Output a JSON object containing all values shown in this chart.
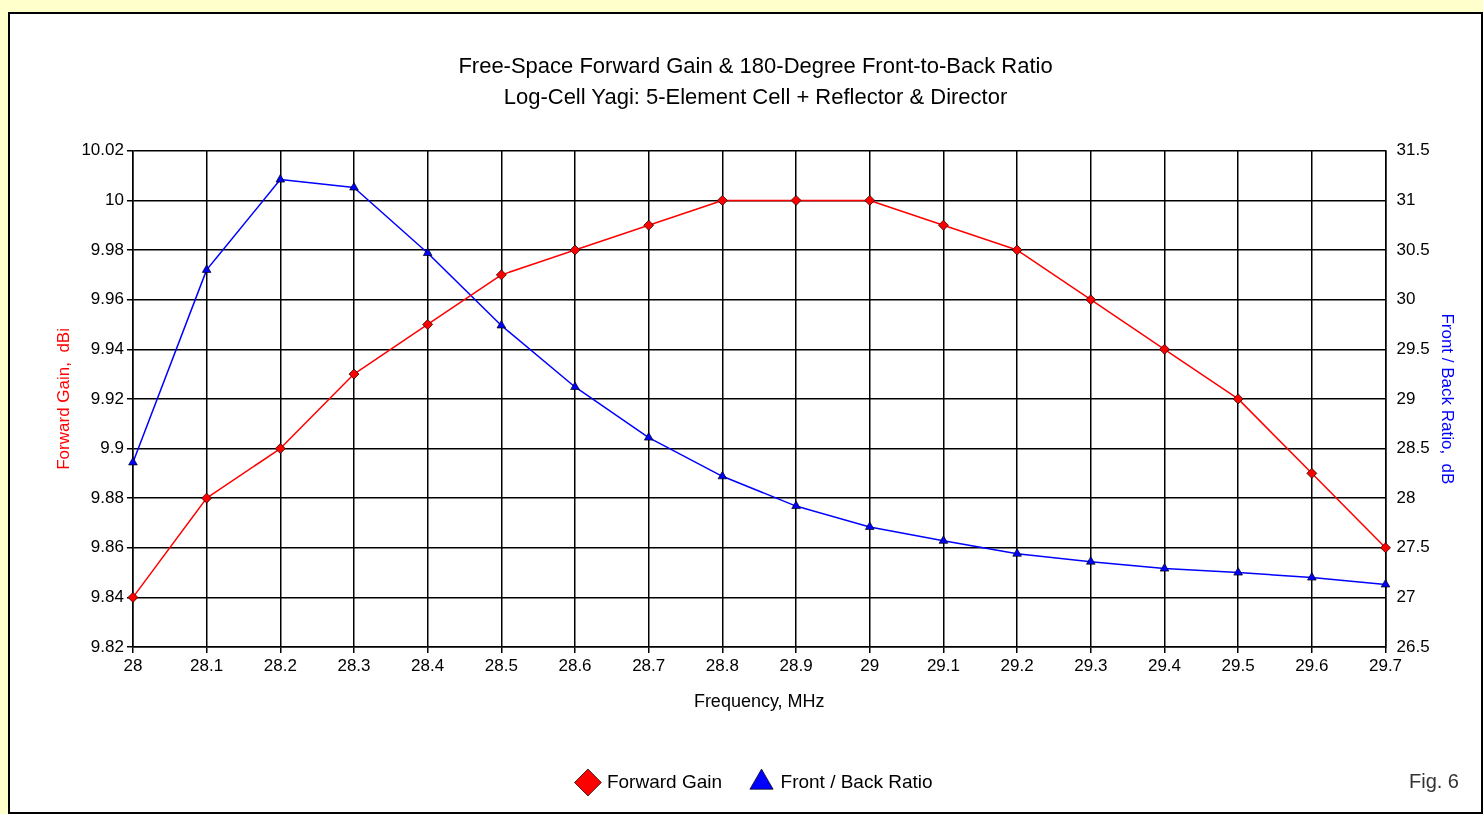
{
  "chart_data": {
    "type": "line",
    "title": "Free-Space Forward Gain & 180-Degree Front-to-Back Ratio",
    "subtitle": "Log-Cell Yagi: 5-Element Cell + Reflector & Director",
    "xlabel": "Frequency, MHz",
    "ylabel": "Forward Gain,  dBi",
    "y2label": "Front / Back Ratio,  dB",
    "categories": [
      "28",
      "28.1",
      "28.2",
      "28.3",
      "28.4",
      "28.5",
      "28.6",
      "28.7",
      "28.8",
      "28.9",
      "29",
      "29.1",
      "29.2",
      "29.3",
      "29.4",
      "29.5",
      "29.6",
      "29.7"
    ],
    "series": [
      {
        "name": "Forward Gain",
        "color": "#ff0000",
        "marker": "diamond",
        "values": [
          9.84,
          9.88,
          9.9,
          9.93,
          9.95,
          9.97,
          9.98,
          9.99,
          10,
          10,
          10,
          9.99,
          9.98,
          9.96,
          9.94,
          9.92,
          9.89,
          9.86
        ]
      },
      {
        "name": "Front / Back Ratio",
        "color": "#0000ff",
        "marker": "triangle",
        "axis": "y2",
        "values": [
          28.36,
          30.3,
          31.21,
          31.13,
          30.47,
          29.74,
          29.12,
          28.61,
          28.22,
          27.92,
          27.71,
          27.57,
          27.44,
          27.36,
          27.29,
          27.25,
          27.2,
          27.13
        ]
      }
    ],
    "ylim": [
      9.82,
      10.02
    ],
    "yticks": [
      9.82,
      9.84,
      9.86,
      9.88,
      9.9,
      9.92,
      9.94,
      9.96,
      9.98,
      10,
      10.02
    ],
    "y2lim": [
      26.5,
      31.5
    ],
    "y2ticks": [
      26.5,
      27,
      27.5,
      28,
      28.5,
      29,
      29.5,
      30,
      30.5,
      31,
      31.5
    ],
    "grid": true,
    "legend": "bottom",
    "line_style": "solid",
    "annotations": [
      "Fig. 6"
    ]
  }
}
